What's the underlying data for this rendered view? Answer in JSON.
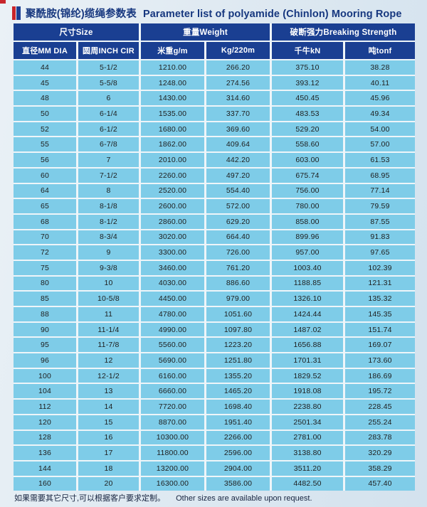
{
  "page": {
    "title_zh": "聚酰胺(锦纶)缆绳参数表",
    "title_en": "Parameter list of polyamide (Chinlon) Mooring Rope",
    "footer_zh": "如果需要其它尺寸,可以根据客户要求定制。",
    "footer_en": "Other sizes are available upon request."
  },
  "colors": {
    "header_bg": "#1a3f92",
    "cell_bg": "#7ecce8",
    "page_bg": "#dde8f1",
    "title_text": "#16377f",
    "cell_text": "#1d1d1d",
    "header_text": "#ffffff",
    "marker_red": "#c8232a",
    "marker_blue": "#1d3e93"
  },
  "table": {
    "group_headers": [
      {
        "label": "尺寸Size",
        "span": 2
      },
      {
        "label": "重量Weight",
        "span": 2
      },
      {
        "label": "破断强力Breaking Strength",
        "span": 2
      }
    ],
    "columns": [
      "直径MM DIA",
      "圆周INCH CIR",
      "米重g/m",
      "Kg/220m",
      "千牛kN",
      "吨tonf"
    ],
    "rows": [
      [
        "44",
        "5-1/2",
        "1210.00",
        "266.20",
        "375.10",
        "38.28"
      ],
      [
        "45",
        "5-5/8",
        "1248.00",
        "274.56",
        "393.12",
        "40.11"
      ],
      [
        "48",
        "6",
        "1430.00",
        "314.60",
        "450.45",
        "45.96"
      ],
      [
        "50",
        "6-1/4",
        "1535.00",
        "337.70",
        "483.53",
        "49.34"
      ],
      [
        "52",
        "6-1/2",
        "1680.00",
        "369.60",
        "529.20",
        "54.00"
      ],
      [
        "55",
        "6-7/8",
        "1862.00",
        "409.64",
        "558.60",
        "57.00"
      ],
      [
        "56",
        "7",
        "2010.00",
        "442.20",
        "603.00",
        "61.53"
      ],
      [
        "60",
        "7-1/2",
        "2260.00",
        "497.20",
        "675.74",
        "68.95"
      ],
      [
        "64",
        "8",
        "2520.00",
        "554.40",
        "756.00",
        "77.14"
      ],
      [
        "65",
        "8-1/8",
        "2600.00",
        "572.00",
        "780.00",
        "79.59"
      ],
      [
        "68",
        "8-1/2",
        "2860.00",
        "629.20",
        "858.00",
        "87.55"
      ],
      [
        "70",
        "8-3/4",
        "3020.00",
        "664.40",
        "899.96",
        "91.83"
      ],
      [
        "72",
        "9",
        "3300.00",
        "726.00",
        "957.00",
        "97.65"
      ],
      [
        "75",
        "9-3/8",
        "3460.00",
        "761.20",
        "1003.40",
        "102.39"
      ],
      [
        "80",
        "10",
        "4030.00",
        "886.60",
        "1188.85",
        "121.31"
      ],
      [
        "85",
        "10-5/8",
        "4450.00",
        "979.00",
        "1326.10",
        "135.32"
      ],
      [
        "88",
        "11",
        "4780.00",
        "1051.60",
        "1424.44",
        "145.35"
      ],
      [
        "90",
        "11-1/4",
        "4990.00",
        "1097.80",
        "1487.02",
        "151.74"
      ],
      [
        "95",
        "11-7/8",
        "5560.00",
        "1223.20",
        "1656.88",
        "169.07"
      ],
      [
        "96",
        "12",
        "5690.00",
        "1251.80",
        "1701.31",
        "173.60"
      ],
      [
        "100",
        "12-1/2",
        "6160.00",
        "1355.20",
        "1829.52",
        "186.69"
      ],
      [
        "104",
        "13",
        "6660.00",
        "1465.20",
        "1918.08",
        "195.72"
      ],
      [
        "112",
        "14",
        "7720.00",
        "1698.40",
        "2238.80",
        "228.45"
      ],
      [
        "120",
        "15",
        "8870.00",
        "1951.40",
        "2501.34",
        "255.24"
      ],
      [
        "128",
        "16",
        "10300.00",
        "2266.00",
        "2781.00",
        "283.78"
      ],
      [
        "136",
        "17",
        "11800.00",
        "2596.00",
        "3138.80",
        "320.29"
      ],
      [
        "144",
        "18",
        "13200.00",
        "2904.00",
        "3511.20",
        "358.29"
      ],
      [
        "160",
        "20",
        "16300.00",
        "3586.00",
        "4482.50",
        "457.40"
      ]
    ]
  }
}
